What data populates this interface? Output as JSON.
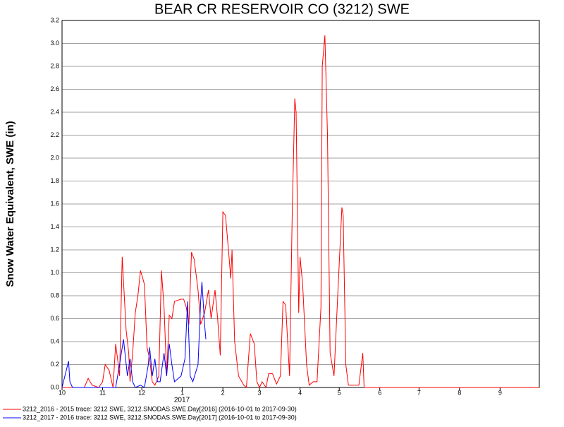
{
  "chart_data": {
    "type": "line",
    "title": "BEAR CR RESERVOIR CO (3212) SWE",
    "y_label": "Snow Water Equivalent, SWE (in)",
    "x_annotation": "2017",
    "xlim": [
      0,
      365
    ],
    "xticks": [
      {
        "value": 0,
        "label": "10"
      },
      {
        "value": 31,
        "label": "11"
      },
      {
        "value": 61,
        "label": "12"
      },
      {
        "value": 92,
        "label": "1"
      },
      {
        "value": 123,
        "label": "2"
      },
      {
        "value": 151,
        "label": "3"
      },
      {
        "value": 182,
        "label": "4"
      },
      {
        "value": 212,
        "label": "5"
      },
      {
        "value": 243,
        "label": "6"
      },
      {
        "value": 273,
        "label": "7"
      },
      {
        "value": 304,
        "label": "8"
      },
      {
        "value": 335,
        "label": "9"
      }
    ],
    "ylim": [
      0,
      3.2
    ],
    "yticks": [
      {
        "value": 0,
        "label": "0.0"
      },
      0.2,
      0.4,
      0.6,
      0.8,
      {
        "value": 1,
        "label": "1.0"
      },
      1.2,
      1.4,
      1.6,
      1.8,
      {
        "value": 2,
        "label": "2.0"
      },
      2.2,
      2.4,
      2.6,
      2.8,
      {
        "value": 3,
        "label": "3.0"
      },
      3.2
    ],
    "grid": true,
    "legend": "bottom",
    "series": [
      {
        "name": "3212_2016 - 2015 trace: 3212 SWE, 3212.SNODAS.SWE.Day[2016] (2016-10-01 to 2017-09-30)",
        "color": "#ff0000",
        "x": [
          0,
          17,
          20,
          23,
          28,
          31,
          33,
          36,
          39,
          41,
          43,
          44,
          46,
          49,
          51,
          52,
          54,
          56,
          58,
          60,
          63,
          65,
          67,
          69,
          71,
          74,
          76,
          78,
          80,
          82,
          84,
          86,
          91,
          93,
          95,
          97,
          99,
          101,
          104,
          106,
          109,
          112,
          114,
          117,
          119,
          121,
          123,
          125,
          128,
          129,
          130,
          132,
          135,
          139,
          141,
          144,
          147,
          149,
          151,
          153,
          156,
          158,
          161,
          164,
          167,
          169,
          171,
          174,
          176,
          178,
          179,
          181,
          182,
          184,
          187,
          189,
          192,
          195,
          198,
          199,
          201,
          203,
          205,
          208,
          210,
          214,
          215,
          217,
          219,
          227,
          230,
          231,
          365
        ],
        "values": [
          0,
          0,
          0.08,
          0.02,
          0,
          0.05,
          0.2,
          0.15,
          0,
          0.38,
          0.2,
          0.1,
          1.14,
          0.5,
          0.3,
          0.05,
          0.3,
          0.65,
          0.8,
          1.02,
          0.9,
          0.35,
          0.25,
          0.05,
          0.02,
          0.1,
          1.02,
          0.7,
          0.1,
          0.63,
          0.6,
          0.75,
          0.77,
          0.77,
          0.7,
          0.55,
          1.18,
          1.12,
          0.85,
          0.55,
          0.65,
          0.85,
          0.6,
          0.85,
          0.6,
          0.28,
          1.53,
          1.5,
          1.1,
          0.95,
          1.2,
          0.4,
          0.1,
          0.02,
          0,
          0.47,
          0.38,
          0.05,
          0,
          0.05,
          0,
          0.12,
          0.12,
          0.03,
          0.1,
          0.75,
          0.72,
          0.1,
          1.5,
          2.52,
          2.4,
          0.65,
          1.14,
          0.9,
          0.2,
          0.02,
          0.05,
          0.05,
          0.7,
          2.8,
          3.07,
          2.2,
          0.3,
          0.1,
          0.6,
          1.57,
          1.5,
          0.2,
          0.02,
          0.02,
          0.3,
          0,
          0
        ]
      },
      {
        "name": "3212_2017 - 2016 trace: 3212 SWE, 3212.SNODAS.SWE.Day[2017] (2016-10-01 to 2017-09-30)",
        "color": "#0000ff",
        "x": [
          0,
          5,
          6,
          8,
          41,
          44,
          47,
          50,
          52,
          54,
          56,
          60,
          63,
          66,
          67,
          69,
          71,
          73,
          75,
          78,
          80,
          82,
          84,
          86,
          91,
          94,
          96,
          98,
          100,
          104,
          106,
          107,
          109,
          110
        ],
        "values": [
          0,
          0.23,
          0.05,
          0,
          0,
          0.2,
          0.42,
          0.1,
          0.25,
          0.05,
          0,
          0.02,
          0,
          0.2,
          0.35,
          0.1,
          0.25,
          0.05,
          0.05,
          0.3,
          0.1,
          0.38,
          0.2,
          0.05,
          0.1,
          0.25,
          0.75,
          0.1,
          0.05,
          0.2,
          0.75,
          0.92,
          0.55,
          0.42
        ]
      }
    ]
  }
}
